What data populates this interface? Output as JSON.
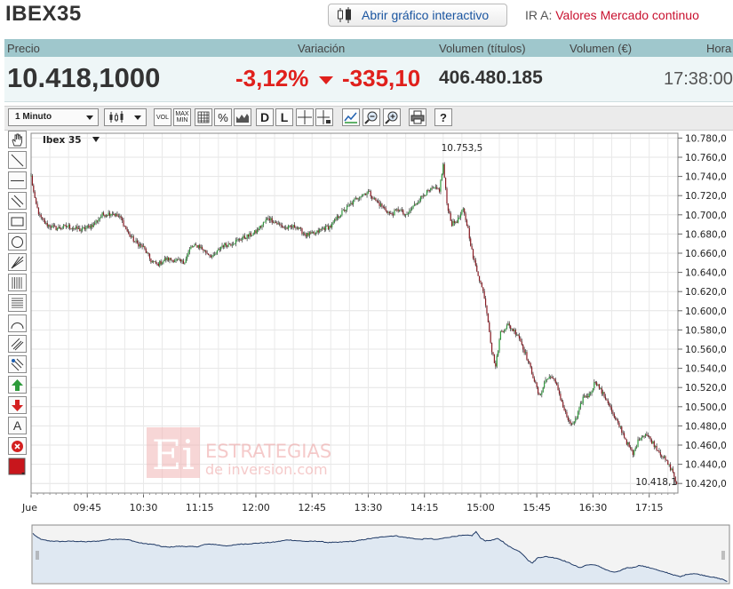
{
  "header": {
    "title": "IBEX35",
    "open_chart_label": "Abrir gráfico interactivo",
    "goto_prefix": "IR A:",
    "goto_link": "Valores Mercado continuo"
  },
  "quote": {
    "labels": {
      "price": "Precio",
      "change": "Variación",
      "volume_shares": "Volumen (títulos)",
      "volume_eur": "Volumen (€)",
      "time": "Hora"
    },
    "price": "10.418,1000",
    "change_pct": "-3,12%",
    "change_abs": "-335,10",
    "volume_shares": "406.480.185",
    "time": "17:38:00",
    "down_color": "#e0201c"
  },
  "toolbar": {
    "interval": "1 Minuto",
    "chart_type_icon": "candlestick-icon",
    "buttons": [
      {
        "name": "volume-button",
        "label": "VOL"
      },
      {
        "name": "maxmin-button",
        "label": "MAX MIN"
      },
      {
        "name": "grid-button",
        "icon": "grid-icon"
      },
      {
        "name": "percent-button",
        "label": "%"
      },
      {
        "name": "area-button",
        "icon": "area-chart-icon"
      },
      {
        "name": "daily-button",
        "label": "D"
      },
      {
        "name": "linear-button",
        "label": "L"
      },
      {
        "name": "crosshair-button",
        "icon": "crosshair-icon"
      },
      {
        "name": "crosshair-label-button",
        "icon": "crosshair-label-icon"
      },
      {
        "name": "compare-button",
        "icon": "compare-icon"
      },
      {
        "name": "zoom-out-button",
        "icon": "zoom-out-icon"
      },
      {
        "name": "zoom-in-button",
        "icon": "zoom-in-icon"
      },
      {
        "name": "print-button",
        "icon": "print-icon"
      },
      {
        "name": "help-button",
        "label": "?"
      }
    ]
  },
  "side_tools": [
    "hand-icon",
    "trendline-icon",
    "horizontal-line-icon",
    "parallel-lines-icon",
    "rectangle-icon",
    "ellipse-icon",
    "fan-icon",
    "fibonacci-vertical-icon",
    "fibonacci-horizontal-icon",
    "arc-icon",
    "channel-icon",
    "regression-icon",
    "arrow-up-icon",
    "arrow-down-icon",
    "text-icon",
    "delete-icon",
    "color-picker-icon"
  ],
  "side_text_tool": "A",
  "watermark": {
    "logo": "Ei",
    "line1": "ESTRATEGIAS",
    "line2": "de inversion.com"
  },
  "chart_data": {
    "type": "candlestick",
    "series_label": "Ibex 35",
    "current_label": "10.418,1",
    "max_label": "10.753,5",
    "x_ticks": [
      "Jue",
      "09:45",
      "10:30",
      "11:15",
      "12:00",
      "12:45",
      "13:30",
      "14:15",
      "15:00",
      "15:45",
      "16:30",
      "17:15"
    ],
    "y_ticks": [
      "10.420,0",
      "10.440,0",
      "10.460,0",
      "10.480,0",
      "10.500,0",
      "10.520,0",
      "10.540,0",
      "10.560,0",
      "10.580,0",
      "10.600,0",
      "10.620,0",
      "10.640,0",
      "10.660,0",
      "10.680,0",
      "10.700,0",
      "10.720,0",
      "10.740,0",
      "10.760,0",
      "10.780,0"
    ],
    "ylim": [
      10410,
      10785
    ],
    "xlim_minutes": [
      540,
      1058
    ],
    "grid": true,
    "up_color": "#2c9a3a",
    "down_color": "#8a1c24",
    "close_path": [
      [
        540,
        10740
      ],
      [
        543,
        10715
      ],
      [
        547,
        10698
      ],
      [
        552,
        10690
      ],
      [
        560,
        10686
      ],
      [
        570,
        10688
      ],
      [
        580,
        10684
      ],
      [
        590,
        10690
      ],
      [
        597,
        10700
      ],
      [
        605,
        10702
      ],
      [
        612,
        10696
      ],
      [
        618,
        10680
      ],
      [
        623,
        10672
      ],
      [
        630,
        10666
      ],
      [
        636,
        10652
      ],
      [
        641,
        10648
      ],
      [
        648,
        10654
      ],
      [
        655,
        10653
      ],
      [
        662,
        10650
      ],
      [
        668,
        10666
      ],
      [
        674,
        10668
      ],
      [
        680,
        10661
      ],
      [
        686,
        10656
      ],
      [
        693,
        10668
      ],
      [
        700,
        10670
      ],
      [
        708,
        10675
      ],
      [
        714,
        10678
      ],
      [
        720,
        10682
      ],
      [
        730,
        10697
      ],
      [
        738,
        10690
      ],
      [
        744,
        10686
      ],
      [
        752,
        10688
      ],
      [
        760,
        10679
      ],
      [
        767,
        10680
      ],
      [
        774,
        10686
      ],
      [
        780,
        10688
      ],
      [
        787,
        10700
      ],
      [
        795,
        10710
      ],
      [
        803,
        10720
      ],
      [
        810,
        10724
      ],
      [
        815,
        10716
      ],
      [
        820,
        10710
      ],
      [
        828,
        10700
      ],
      [
        835,
        10706
      ],
      [
        840,
        10698
      ],
      [
        848,
        10712
      ],
      [
        855,
        10722
      ],
      [
        862,
        10727
      ],
      [
        867,
        10726
      ],
      [
        870,
        10752
      ],
      [
        873,
        10712
      ],
      [
        877,
        10690
      ],
      [
        882,
        10695
      ],
      [
        886,
        10705
      ],
      [
        890,
        10685
      ],
      [
        894,
        10655
      ],
      [
        898,
        10638
      ],
      [
        903,
        10615
      ],
      [
        906,
        10590
      ],
      [
        909,
        10558
      ],
      [
        912,
        10542
      ],
      [
        916,
        10578
      ],
      [
        922,
        10585
      ],
      [
        930,
        10575
      ],
      [
        936,
        10555
      ],
      [
        942,
        10532
      ],
      [
        947,
        10510
      ],
      [
        952,
        10528
      ],
      [
        957,
        10532
      ],
      [
        962,
        10518
      ],
      [
        967,
        10496
      ],
      [
        972,
        10480
      ],
      [
        977,
        10488
      ],
      [
        982,
        10510
      ],
      [
        987,
        10512
      ],
      [
        992,
        10527
      ],
      [
        997,
        10515
      ],
      [
        1002,
        10505
      ],
      [
        1007,
        10488
      ],
      [
        1012,
        10478
      ],
      [
        1017,
        10463
      ],
      [
        1022,
        10450
      ],
      [
        1027,
        10467
      ],
      [
        1032,
        10472
      ],
      [
        1037,
        10464
      ],
      [
        1042,
        10455
      ],
      [
        1046,
        10448
      ],
      [
        1050,
        10440
      ],
      [
        1054,
        10432
      ],
      [
        1057,
        10418
      ]
    ],
    "navigator": {
      "ylim": [
        10410,
        10790
      ]
    }
  }
}
